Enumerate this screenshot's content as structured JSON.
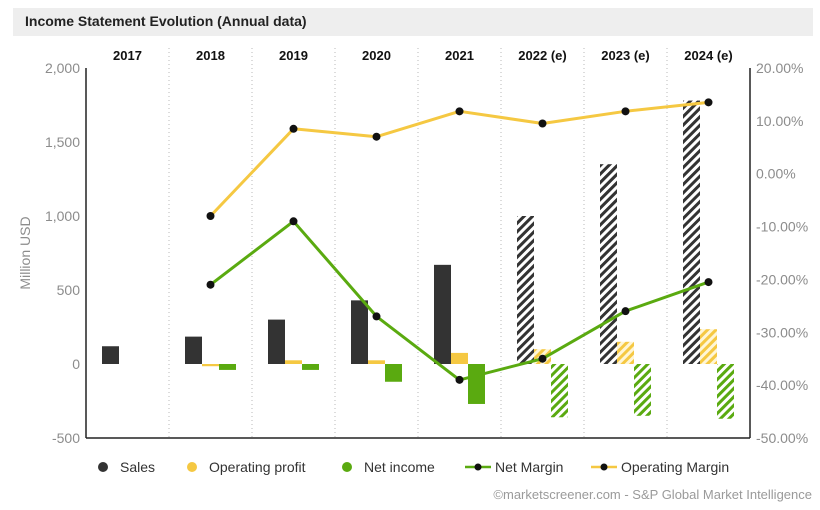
{
  "header": {
    "title": "Income Statement Evolution (Annual data)"
  },
  "footer": {
    "credit": "©marketscreener.com - S&P Global Market Intelligence"
  },
  "chart_data": {
    "type": "bar",
    "categories": [
      "2017",
      "2018",
      "2019",
      "2020",
      "2021",
      "2022 (e)",
      "2023 (e)",
      "2024 (e)"
    ],
    "estimated": [
      false,
      false,
      false,
      false,
      false,
      true,
      true,
      true
    ],
    "ylabel": "Million USD",
    "ylim": [
      -500,
      2000
    ],
    "yticks": [
      -500,
      0,
      500,
      "1,000",
      "1,500",
      "2,000"
    ],
    "y2lim": [
      -50,
      20
    ],
    "y2ticks": [
      "-50.00%",
      "-40.00%",
      "-30.00%",
      "-20.00%",
      "-10.00%",
      "0.00%",
      "10.00%",
      "20.00%"
    ],
    "series": [
      {
        "name": "Sales",
        "kind": "bar",
        "color": "#333333",
        "values": [
          120,
          185,
          300,
          430,
          670,
          1000,
          1350,
          1780
        ]
      },
      {
        "name": "Operating profit",
        "kind": "bar",
        "color": "#f5c842",
        "values": [
          null,
          -15,
          25,
          25,
          75,
          100,
          150,
          235
        ]
      },
      {
        "name": "Net income",
        "kind": "bar",
        "color": "#5aaa10",
        "values": [
          null,
          -40,
          -40,
          -120,
          -270,
          -360,
          -350,
          -370
        ]
      },
      {
        "name": "Net Margin",
        "kind": "line",
        "axis": "right",
        "color": "#5aaa10",
        "values": [
          null,
          -21,
          -9,
          -27,
          -39,
          -35,
          -26,
          -20.5
        ]
      },
      {
        "name": "Operating Margin",
        "kind": "line",
        "axis": "right",
        "color": "#f5c842",
        "values": [
          null,
          -8,
          8.5,
          7,
          11.8,
          9.5,
          11.8,
          13.5
        ]
      }
    ],
    "legend": [
      "Sales",
      "Operating profit",
      "Net income",
      "Net Margin",
      "Operating Margin"
    ],
    "grid": "vertical dotted separators"
  }
}
